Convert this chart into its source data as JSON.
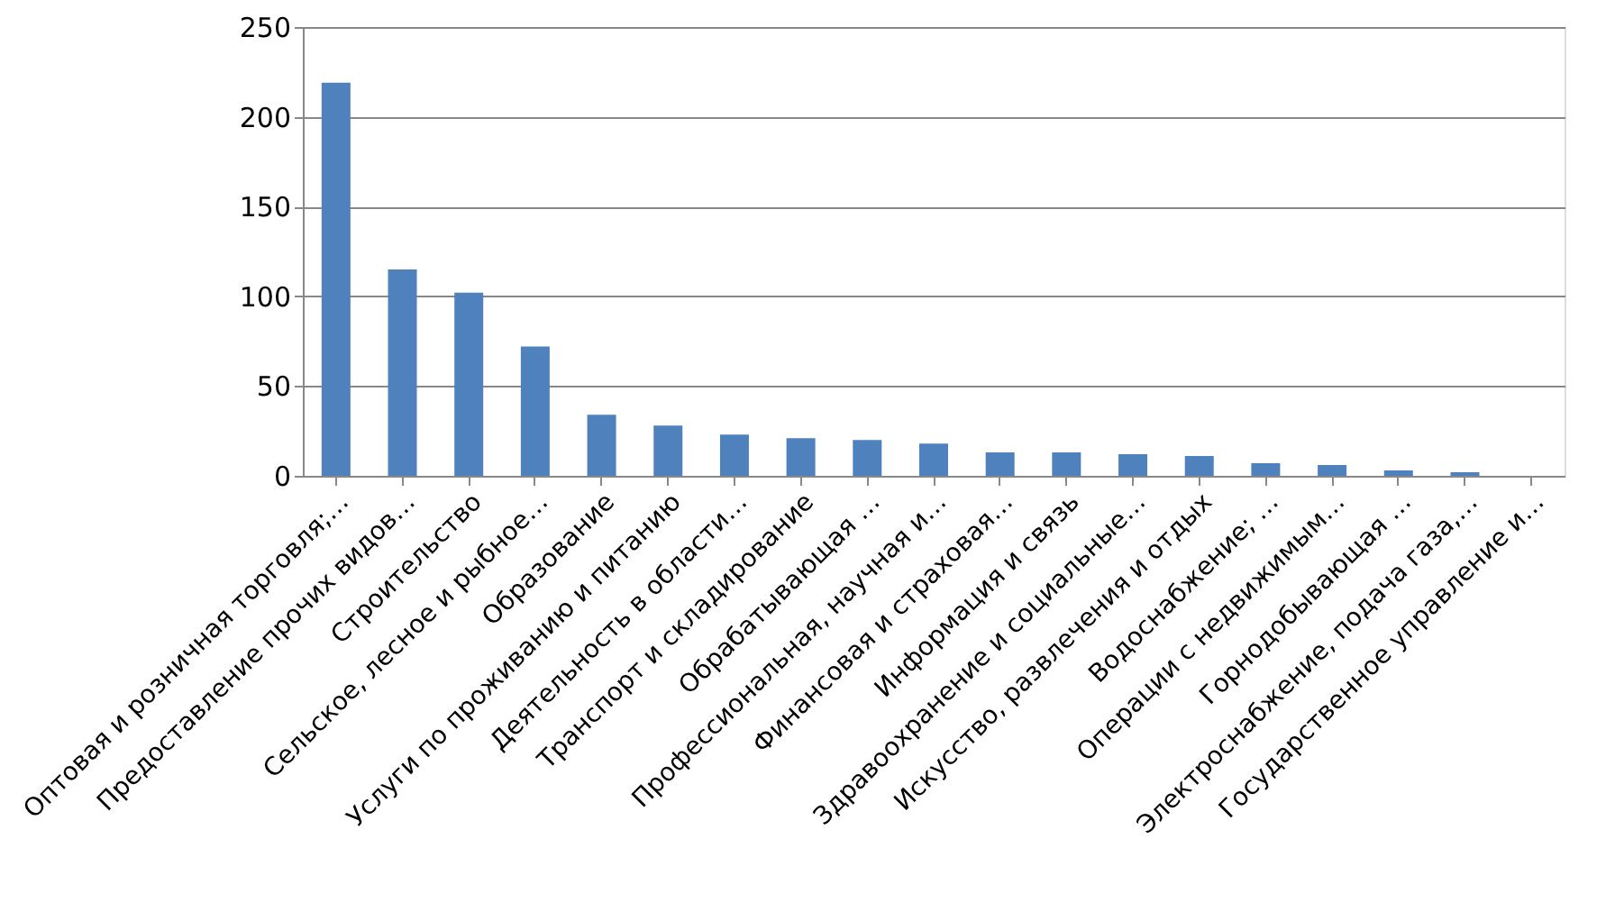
{
  "chart_data": {
    "type": "bar",
    "categories": [
      "Оптовая и розничная торговля;…",
      "Предоставление прочих видов…",
      "Строительство",
      "Сельское, лесное и рыбное…",
      "Образование",
      "Услуги по проживанию  и питанию",
      "Деятельность в области…",
      "Транспорт и складирование",
      "Обрабатывающая …",
      "Профессиональная, научная и…",
      "Финансовая и страховая…",
      "Информация  и связь",
      "Здравоохранение  и социальные…",
      "Искусство, развлечения  и отдых",
      "Водоснабжение; …",
      "Операции  с недвижимым…",
      "Горнодобывающая …",
      "Электроснабжение,  подача газа,…",
      "Государственное управление  и…"
    ],
    "values": [
      219,
      115,
      102,
      72,
      34,
      28,
      23,
      21,
      20,
      18,
      13,
      13,
      12,
      11,
      7,
      6,
      3,
      2,
      0
    ],
    "color": "#4f81bd",
    "ylim": [
      0,
      250
    ],
    "yticks": [
      0,
      50,
      100,
      150,
      200,
      250
    ],
    "grid": "y"
  }
}
